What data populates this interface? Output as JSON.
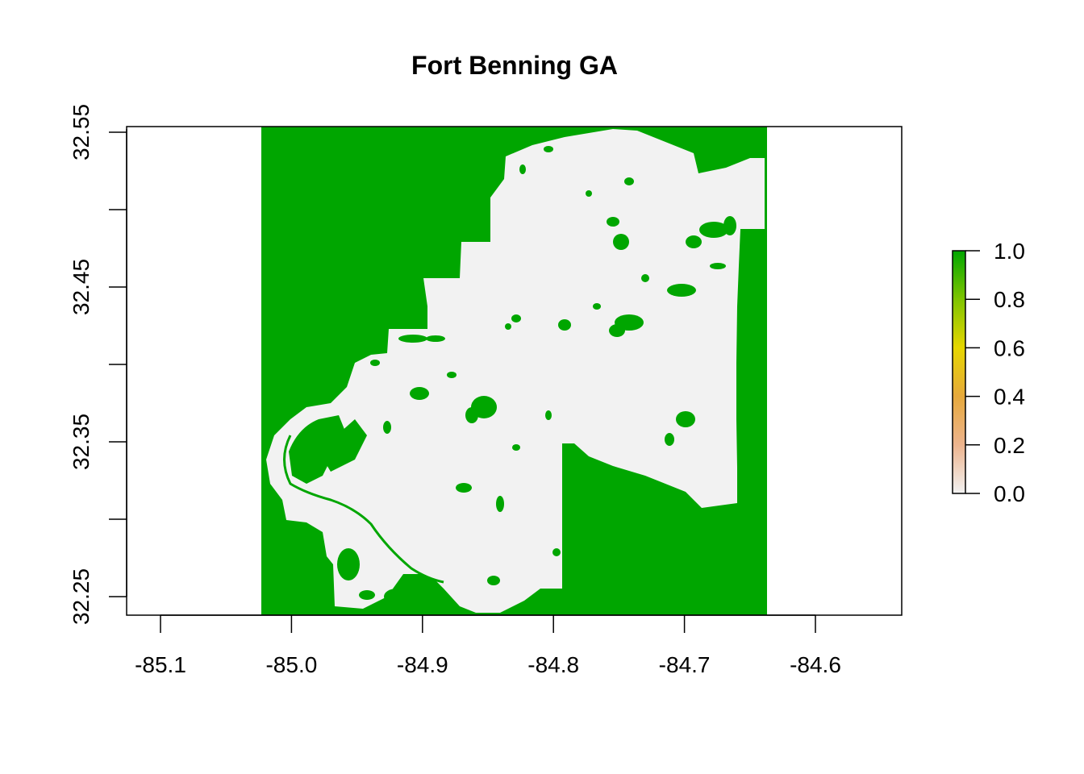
{
  "title": "Fort Benning GA",
  "x_axis": {
    "range": [
      -85.126,
      -84.541
    ],
    "ticks": [
      -85.1,
      -85.0,
      -84.9,
      -84.8,
      -84.7,
      -84.6
    ],
    "labels": [
      "-85.1",
      "-85.0",
      "-84.9",
      "-84.8",
      "-84.7",
      "-84.6"
    ]
  },
  "y_axis": {
    "range": [
      32.238,
      32.553
    ],
    "ticks": [
      32.25,
      32.3,
      32.35,
      32.4,
      32.45,
      32.5,
      32.55
    ],
    "labels": [
      "32.25",
      "",
      "32.35",
      "",
      "32.45",
      "",
      "32.55"
    ]
  },
  "raster": {
    "extent_x": [
      -85.024,
      -84.637
    ],
    "extent_y": [
      32.238,
      32.553
    ],
    "background_value": 1.0,
    "installation_value": 0.0
  },
  "legend": {
    "labels": [
      "1.0",
      "0.8",
      "0.6",
      "0.4",
      "0.2",
      "0.0"
    ],
    "values": [
      1.0,
      0.8,
      0.6,
      0.4,
      0.2,
      0.0
    ]
  },
  "colors": {
    "forest": "#00A600",
    "nonforest": "#F2F2F2",
    "scale": [
      "#F2F2F2",
      "#EDB48E",
      "#E6C21E",
      "#B6D000",
      "#5EBC00",
      "#00A600"
    ]
  }
}
